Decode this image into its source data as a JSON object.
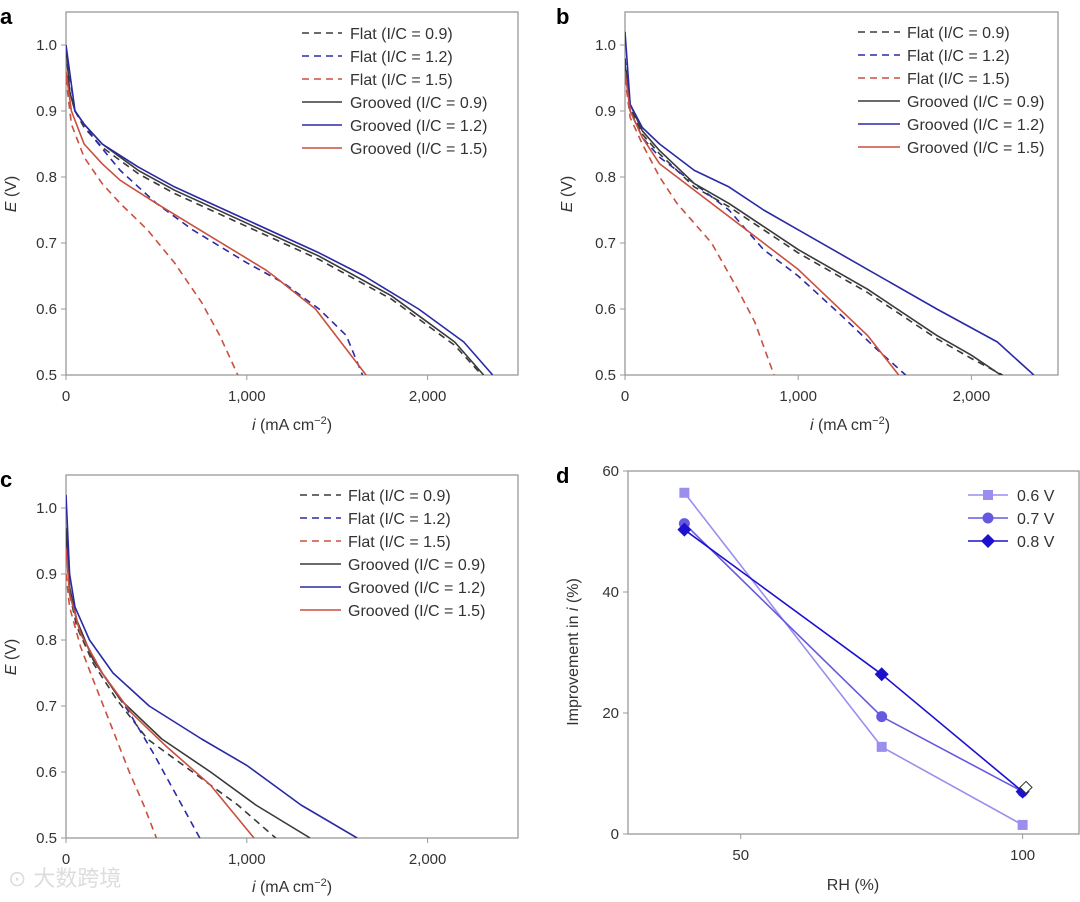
{
  "watermark": "大数跨境",
  "colors": {
    "black": "#3a3a3a",
    "blue": "#2a2aa6",
    "red": "#c9503e",
    "v06": "#9a8fee",
    "v07": "#6659e0",
    "v08": "#1d10cf",
    "axis": "#999999"
  },
  "chart_data": [
    {
      "panel": "a",
      "type": "line",
      "xlabel_italic": "i",
      "xlabel": " (mA cm",
      "xlabel_sup": "−2",
      "xlabel_end": ")",
      "ylabel_italic": "E",
      "ylabel": " (V)",
      "xlim": [
        0,
        2500
      ],
      "ylim": [
        0.5,
        1.05
      ],
      "xticks": [
        0,
        1000,
        2000
      ],
      "xtick_labels": [
        "0",
        "1,000",
        "2,000"
      ],
      "yticks": [
        0.5,
        0.6,
        0.7,
        0.8,
        0.9,
        1.0
      ],
      "ytick_labels": [
        "0.5",
        "0.6",
        "0.7",
        "0.8",
        "0.9",
        "1.0"
      ],
      "legend": "top-right",
      "series": [
        {
          "name": "Flat (I/C = 0.9)",
          "color": "black",
          "dash": true,
          "points": [
            [
              0,
              0.99
            ],
            [
              20,
              0.93
            ],
            [
              50,
              0.9
            ],
            [
              100,
              0.875
            ],
            [
              200,
              0.845
            ],
            [
              400,
              0.805
            ],
            [
              600,
              0.775
            ],
            [
              1000,
              0.725
            ],
            [
              1400,
              0.675
            ],
            [
              1800,
              0.615
            ],
            [
              2000,
              0.575
            ],
            [
              2150,
              0.545
            ],
            [
              2300,
              0.5
            ]
          ]
        },
        {
          "name": "Flat (I/C = 1.2)",
          "color": "blue",
          "dash": true,
          "points": [
            [
              0,
              0.99
            ],
            [
              50,
              0.9
            ],
            [
              150,
              0.86
            ],
            [
              300,
              0.81
            ],
            [
              500,
              0.76
            ],
            [
              700,
              0.72
            ],
            [
              1000,
              0.67
            ],
            [
              1200,
              0.64
            ],
            [
              1400,
              0.6
            ],
            [
              1550,
              0.56
            ],
            [
              1640,
              0.5
            ]
          ]
        },
        {
          "name": "Flat (I/C = 1.5)",
          "color": "red",
          "dash": true,
          "points": [
            [
              0,
              0.95
            ],
            [
              30,
              0.88
            ],
            [
              100,
              0.83
            ],
            [
              200,
              0.79
            ],
            [
              300,
              0.76
            ],
            [
              450,
              0.72
            ],
            [
              600,
              0.67
            ],
            [
              750,
              0.61
            ],
            [
              850,
              0.56
            ],
            [
              950,
              0.5
            ]
          ]
        },
        {
          "name": "Grooved (I/C = 0.9)",
          "color": "black",
          "dash": false,
          "points": [
            [
              0,
              1.0
            ],
            [
              20,
              0.93
            ],
            [
              50,
              0.9
            ],
            [
              100,
              0.88
            ],
            [
              200,
              0.85
            ],
            [
              400,
              0.81
            ],
            [
              600,
              0.78
            ],
            [
              1000,
              0.73
            ],
            [
              1400,
              0.68
            ],
            [
              1800,
              0.62
            ],
            [
              2000,
              0.58
            ],
            [
              2150,
              0.55
            ],
            [
              2310,
              0.5
            ]
          ]
        },
        {
          "name": "Grooved (I/C = 1.2)",
          "color": "blue",
          "dash": false,
          "points": [
            [
              0,
              1.0
            ],
            [
              50,
              0.9
            ],
            [
              100,
              0.88
            ],
            [
              200,
              0.85
            ],
            [
              400,
              0.815
            ],
            [
              600,
              0.785
            ],
            [
              1000,
              0.735
            ],
            [
              1400,
              0.685
            ],
            [
              1650,
              0.65
            ],
            [
              1950,
              0.6
            ],
            [
              2200,
              0.55
            ],
            [
              2360,
              0.5
            ]
          ]
        },
        {
          "name": "Grooved (I/C = 1.5)",
          "color": "red",
          "dash": false,
          "points": [
            [
              0,
              0.96
            ],
            [
              30,
              0.9
            ],
            [
              100,
              0.85
            ],
            [
              200,
              0.82
            ],
            [
              300,
              0.795
            ],
            [
              500,
              0.76
            ],
            [
              800,
              0.71
            ],
            [
              1100,
              0.66
            ],
            [
              1150,
              0.65
            ],
            [
              1380,
              0.6
            ],
            [
              1520,
              0.55
            ],
            [
              1660,
              0.5
            ]
          ]
        }
      ]
    },
    {
      "panel": "b",
      "type": "line",
      "xlabel_italic": "i",
      "xlabel": " (mA cm",
      "xlabel_sup": "−2",
      "xlabel_end": ")",
      "ylabel_italic": "E",
      "ylabel": " (V)",
      "xlim": [
        0,
        2500
      ],
      "ylim": [
        0.5,
        1.05
      ],
      "xticks": [
        0,
        1000,
        2000
      ],
      "xtick_labels": [
        "0",
        "1,000",
        "2,000"
      ],
      "yticks": [
        0.5,
        0.6,
        0.7,
        0.8,
        0.9,
        1.0
      ],
      "ytick_labels": [
        "0.5",
        "0.6",
        "0.7",
        "0.8",
        "0.9",
        "1.0"
      ],
      "legend": "top-right",
      "series": [
        {
          "name": "Flat (I/C = 0.9)",
          "color": "black",
          "dash": true,
          "points": [
            [
              0,
              0.97
            ],
            [
              30,
              0.905
            ],
            [
              100,
              0.865
            ],
            [
              200,
              0.835
            ],
            [
              400,
              0.785
            ],
            [
              600,
              0.755
            ],
            [
              1000,
              0.685
            ],
            [
              1400,
              0.625
            ],
            [
              1800,
              0.555
            ],
            [
              2000,
              0.525
            ],
            [
              2180,
              0.5
            ]
          ]
        },
        {
          "name": "Flat (I/C = 1.2)",
          "color": "blue",
          "dash": true,
          "points": [
            [
              0,
              0.98
            ],
            [
              30,
              0.9
            ],
            [
              100,
              0.86
            ],
            [
              200,
              0.83
            ],
            [
              400,
              0.79
            ],
            [
              600,
              0.75
            ],
            [
              800,
              0.69
            ],
            [
              1000,
              0.65
            ],
            [
              1250,
              0.59
            ],
            [
              1450,
              0.54
            ],
            [
              1620,
              0.5
            ]
          ]
        },
        {
          "name": "Flat (I/C = 1.5)",
          "color": "red",
          "dash": true,
          "points": [
            [
              0,
              0.95
            ],
            [
              30,
              0.89
            ],
            [
              100,
              0.85
            ],
            [
              200,
              0.8
            ],
            [
              300,
              0.76
            ],
            [
              500,
              0.7
            ],
            [
              650,
              0.63
            ],
            [
              750,
              0.58
            ],
            [
              860,
              0.5
            ]
          ]
        },
        {
          "name": "Grooved (I/C = 0.9)",
          "color": "black",
          "dash": false,
          "points": [
            [
              0,
              0.97
            ],
            [
              30,
              0.91
            ],
            [
              100,
              0.87
            ],
            [
              200,
              0.84
            ],
            [
              400,
              0.79
            ],
            [
              600,
              0.76
            ],
            [
              1000,
              0.69
            ],
            [
              1400,
              0.63
            ],
            [
              1800,
              0.56
            ],
            [
              2000,
              0.53
            ],
            [
              2170,
              0.5
            ]
          ]
        },
        {
          "name": "Grooved (I/C = 1.2)",
          "color": "blue",
          "dash": false,
          "points": [
            [
              0,
              1.02
            ],
            [
              30,
              0.91
            ],
            [
              100,
              0.875
            ],
            [
              200,
              0.85
            ],
            [
              400,
              0.81
            ],
            [
              600,
              0.785
            ],
            [
              800,
              0.75
            ],
            [
              1000,
              0.72
            ],
            [
              1400,
              0.66
            ],
            [
              1800,
              0.6
            ],
            [
              2150,
              0.55
            ],
            [
              2360,
              0.5
            ]
          ]
        },
        {
          "name": "Grooved (I/C = 1.5)",
          "color": "red",
          "dash": false,
          "points": [
            [
              0,
              0.96
            ],
            [
              30,
              0.9
            ],
            [
              100,
              0.86
            ],
            [
              200,
              0.82
            ],
            [
              300,
              0.8
            ],
            [
              500,
              0.76
            ],
            [
              800,
              0.7
            ],
            [
              1000,
              0.66
            ],
            [
              1200,
              0.61
            ],
            [
              1400,
              0.56
            ],
            [
              1580,
              0.5
            ]
          ]
        }
      ]
    },
    {
      "panel": "c",
      "type": "line",
      "xlabel_italic": "i",
      "xlabel": " (mA cm",
      "xlabel_sup": "−2",
      "xlabel_end": ")",
      "ylabel_italic": "E",
      "ylabel": " (V)",
      "xlim": [
        0,
        2500
      ],
      "ylim": [
        0.5,
        1.05
      ],
      "xticks": [
        0,
        1000,
        2000
      ],
      "xtick_labels": [
        "0",
        "1,000",
        "2,000"
      ],
      "yticks": [
        0.5,
        0.6,
        0.7,
        0.8,
        0.9,
        1.0
      ],
      "ytick_labels": [
        "0.5",
        "0.6",
        "0.7",
        "0.8",
        "0.9",
        "1.0"
      ],
      "legend": "top-right",
      "series": [
        {
          "name": "Flat (I/C = 0.9)",
          "color": "black",
          "dash": true,
          "points": [
            [
              0,
              0.96
            ],
            [
              20,
              0.87
            ],
            [
              60,
              0.82
            ],
            [
              150,
              0.765
            ],
            [
              280,
              0.71
            ],
            [
              450,
              0.65
            ],
            [
              700,
              0.6
            ],
            [
              950,
              0.55
            ],
            [
              1160,
              0.5
            ]
          ]
        },
        {
          "name": "Flat (I/C = 1.2)",
          "color": "blue",
          "dash": true,
          "points": [
            [
              0,
              0.95
            ],
            [
              20,
              0.87
            ],
            [
              80,
              0.81
            ],
            [
              200,
              0.75
            ],
            [
              350,
              0.69
            ],
            [
              480,
              0.63
            ],
            [
              600,
              0.57
            ],
            [
              740,
              0.5
            ]
          ]
        },
        {
          "name": "Flat (I/C = 1.5)",
          "color": "red",
          "dash": true,
          "points": [
            [
              0,
              0.9
            ],
            [
              20,
              0.85
            ],
            [
              80,
              0.79
            ],
            [
              150,
              0.74
            ],
            [
              250,
              0.67
            ],
            [
              350,
              0.6
            ],
            [
              430,
              0.55
            ],
            [
              500,
              0.5
            ]
          ]
        },
        {
          "name": "Grooved (I/C = 0.9)",
          "color": "black",
          "dash": false,
          "points": [
            [
              0,
              0.97
            ],
            [
              20,
              0.88
            ],
            [
              60,
              0.83
            ],
            [
              150,
              0.77
            ],
            [
              300,
              0.71
            ],
            [
              530,
              0.65
            ],
            [
              800,
              0.6
            ],
            [
              1050,
              0.55
            ],
            [
              1350,
              0.5
            ]
          ]
        },
        {
          "name": "Grooved (I/C = 1.2)",
          "color": "blue",
          "dash": false,
          "points": [
            [
              0,
              1.02
            ],
            [
              20,
              0.9
            ],
            [
              50,
              0.85
            ],
            [
              130,
              0.8
            ],
            [
              260,
              0.75
            ],
            [
              460,
              0.7
            ],
            [
              750,
              0.65
            ],
            [
              1000,
              0.61
            ],
            [
              1300,
              0.55
            ],
            [
              1610,
              0.5
            ]
          ]
        },
        {
          "name": "Grooved (I/C = 1.5)",
          "color": "red",
          "dash": false,
          "points": [
            [
              0,
              0.94
            ],
            [
              20,
              0.87
            ],
            [
              80,
              0.81
            ],
            [
              200,
              0.75
            ],
            [
              360,
              0.69
            ],
            [
              550,
              0.64
            ],
            [
              800,
              0.58
            ],
            [
              1040,
              0.5
            ]
          ]
        }
      ]
    },
    {
      "panel": "d",
      "type": "line",
      "xlabel": "RH (%)",
      "ylabel": "Improvement in ",
      "ylabel_italic": "i",
      "ylabel_end": " (%)",
      "xlim": [
        30,
        110
      ],
      "ylim": [
        0,
        60
      ],
      "xticks": [
        50,
        100
      ],
      "xtick_labels": [
        "50",
        "100"
      ],
      "yticks": [
        0,
        20,
        40,
        60
      ],
      "ytick_labels": [
        "0",
        "20",
        "40",
        "60"
      ],
      "legend": "top-right",
      "series": [
        {
          "name": "0.6 V",
          "color": "v06",
          "marker": "square",
          "points": [
            [
              40,
              56.4
            ],
            [
              75,
              14.4
            ],
            [
              100,
              1.5
            ]
          ]
        },
        {
          "name": "0.7 V",
          "color": "v07",
          "marker": "circle",
          "points": [
            [
              40,
              51.3
            ],
            [
              75,
              19.4
            ],
            [
              100,
              7.0
            ]
          ]
        },
        {
          "name": "0.8 V",
          "color": "v08",
          "marker": "diamond",
          "points": [
            [
              40,
              50.3
            ],
            [
              75,
              26.4
            ],
            [
              100,
              7.0
            ]
          ]
        }
      ]
    }
  ]
}
